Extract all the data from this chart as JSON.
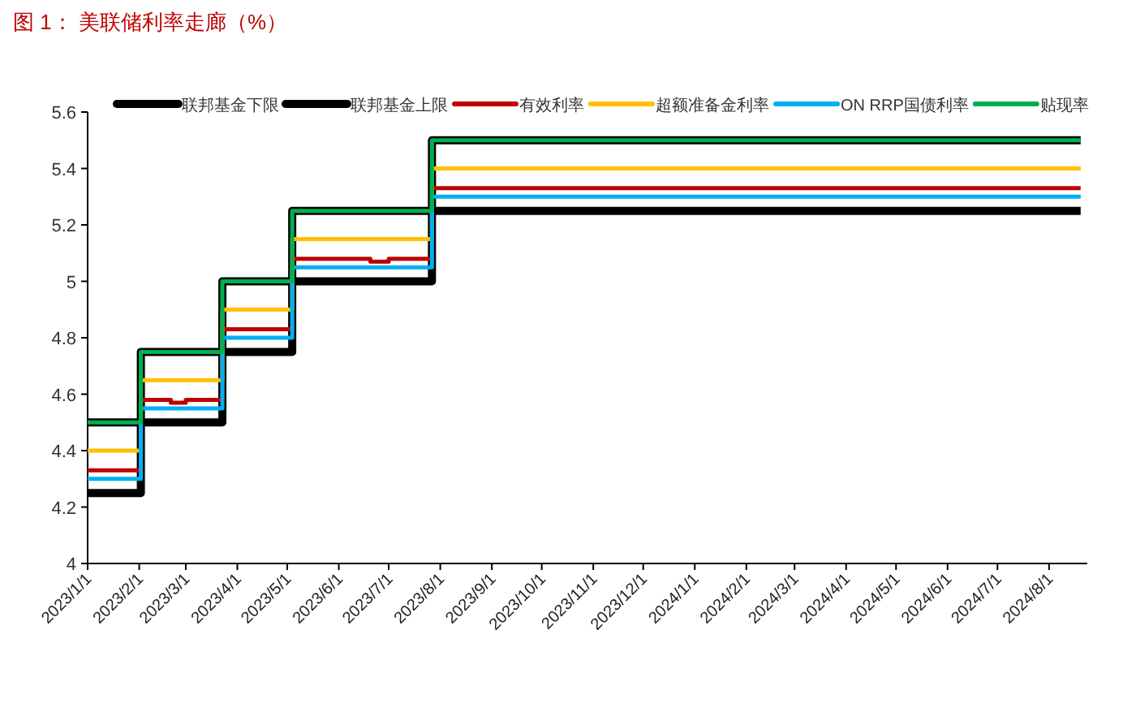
{
  "chart_data": {
    "type": "step",
    "title": "图 1：  美联储利率走廊（%）",
    "series": [
      {
        "name": "联邦基金下限",
        "color": "#000000",
        "x": [
          "2023-01-01",
          "2023-02-02",
          "2023-03-23",
          "2023-05-04",
          "2023-07-27",
          "2024-08-20"
        ],
        "values": [
          4.25,
          4.5,
          4.75,
          5.0,
          5.25,
          5.25
        ]
      },
      {
        "name": "联邦基金上限",
        "color": "#000000",
        "x": [
          "2023-01-01",
          "2023-02-02",
          "2023-03-23",
          "2023-05-04",
          "2023-07-27",
          "2024-08-20"
        ],
        "values": [
          4.5,
          4.75,
          5.0,
          5.25,
          5.5,
          5.5
        ]
      },
      {
        "name": "有效利率",
        "color": "#c00000",
        "x": [
          "2023-01-01",
          "2023-02-02",
          "2023-02-20",
          "2023-03-01",
          "2023-03-23",
          "2023-05-04",
          "2023-06-20",
          "2023-07-01",
          "2023-07-27",
          "2024-08-20"
        ],
        "values": [
          4.33,
          4.58,
          4.57,
          4.58,
          4.83,
          5.08,
          5.07,
          5.08,
          5.33,
          5.33
        ]
      },
      {
        "name": "超额准备金利率",
        "color": "#ffc000",
        "x": [
          "2023-01-01",
          "2023-02-02",
          "2023-03-23",
          "2023-05-04",
          "2023-07-27",
          "2024-08-20"
        ],
        "values": [
          4.4,
          4.65,
          4.9,
          5.15,
          5.4,
          5.4
        ]
      },
      {
        "name": "ON RRP国债利率",
        "color": "#00b0f0",
        "x": [
          "2023-01-01",
          "2023-02-02",
          "2023-03-23",
          "2023-05-04",
          "2023-07-27",
          "2024-08-20"
        ],
        "values": [
          4.3,
          4.55,
          4.8,
          5.05,
          5.3,
          5.3
        ]
      },
      {
        "name": "贴现率",
        "color": "#00b050",
        "x": [
          "2023-01-01",
          "2023-02-02",
          "2023-03-23",
          "2023-05-04",
          "2023-07-27",
          "2024-08-20"
        ],
        "values": [
          4.5,
          4.75,
          5.0,
          5.25,
          5.5,
          5.5
        ]
      }
    ],
    "xlim": [
      "2023-01-01",
      "2024-08-24"
    ],
    "xticks": [
      {
        "value": "2023-01-01",
        "label": "2023/1/1"
      },
      {
        "value": "2023-02-01",
        "label": "2023/2/1"
      },
      {
        "value": "2023-03-01",
        "label": "2023/3/1"
      },
      {
        "value": "2023-04-01",
        "label": "2023/4/1"
      },
      {
        "value": "2023-05-01",
        "label": "2023/5/1"
      },
      {
        "value": "2023-06-01",
        "label": "2023/6/1"
      },
      {
        "value": "2023-07-01",
        "label": "2023/7/1"
      },
      {
        "value": "2023-08-01",
        "label": "2023/8/1"
      },
      {
        "value": "2023-09-01",
        "label": "2023/9/1"
      },
      {
        "value": "2023-10-01",
        "label": "2023/10/1"
      },
      {
        "value": "2023-11-01",
        "label": "2023/11/1"
      },
      {
        "value": "2023-12-01",
        "label": "2023/12/1"
      },
      {
        "value": "2024-01-01",
        "label": "2024/1/1"
      },
      {
        "value": "2024-02-01",
        "label": "2024/2/1"
      },
      {
        "value": "2024-03-01",
        "label": "2024/3/1"
      },
      {
        "value": "2024-04-01",
        "label": "2024/4/1"
      },
      {
        "value": "2024-05-01",
        "label": "2024/5/1"
      },
      {
        "value": "2024-06-01",
        "label": "2024/6/1"
      },
      {
        "value": "2024-07-01",
        "label": "2024/7/1"
      },
      {
        "value": "2024-08-01",
        "label": "2024/8/1"
      }
    ],
    "ylim": [
      4,
      5.6
    ],
    "yticks": [
      4,
      4.2,
      4.4,
      4.6,
      4.8,
      5,
      5.2,
      5.4,
      5.6
    ],
    "legend": "top",
    "marker": "none"
  }
}
